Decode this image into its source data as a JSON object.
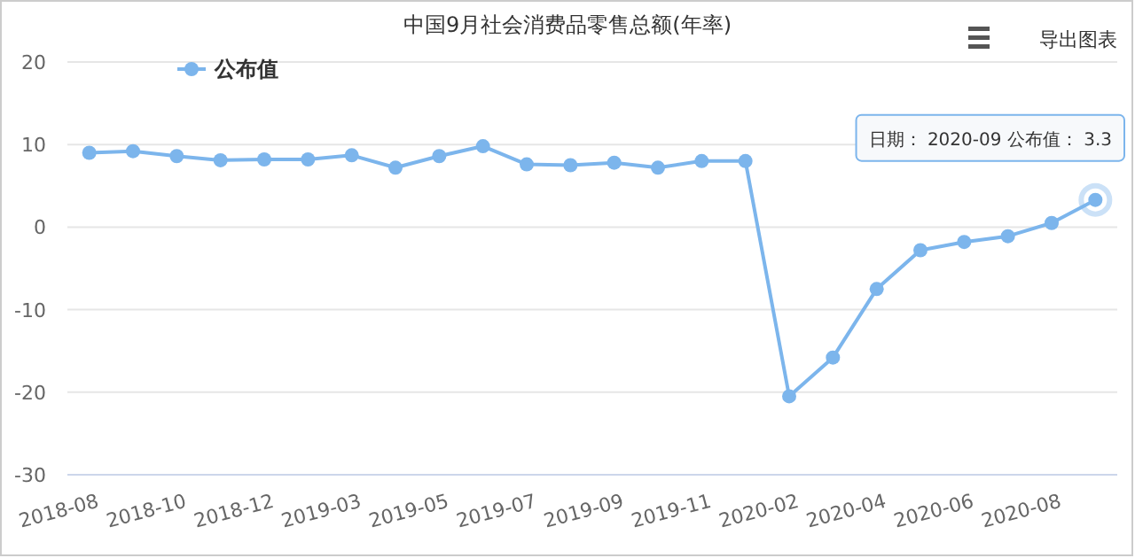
{
  "chart_data": {
    "type": "line",
    "title": "中国9月社会消费品零售总额(年率)",
    "categories": [
      "2018-08",
      null,
      "2018-10",
      null,
      "2018-12",
      null,
      "2019-03",
      null,
      "2019-05",
      null,
      "2019-07",
      null,
      "2019-09",
      null,
      "2019-11",
      null,
      "2020-02",
      null,
      "2020-04",
      null,
      "2020-06",
      null,
      "2020-08",
      null
    ],
    "series": [
      {
        "name": "公布值",
        "color": "#7cb5ec",
        "values": [
          9.0,
          9.2,
          8.6,
          8.1,
          8.2,
          8.2,
          8.7,
          7.2,
          8.6,
          9.8,
          7.6,
          7.5,
          7.8,
          7.2,
          8.0,
          8.0,
          -20.5,
          -15.8,
          -7.5,
          -2.8,
          -1.8,
          -1.1,
          0.5,
          3.3
        ]
      }
    ],
    "ylim": [
      -30,
      20
    ],
    "yticks": [
      -30,
      -20,
      -10,
      0,
      10,
      20
    ],
    "grid": "y",
    "legend": "top left",
    "marker": "circle",
    "annotations": [
      "导出图表",
      "日期： 2020-09 公布值： 3.3"
    ]
  }
}
